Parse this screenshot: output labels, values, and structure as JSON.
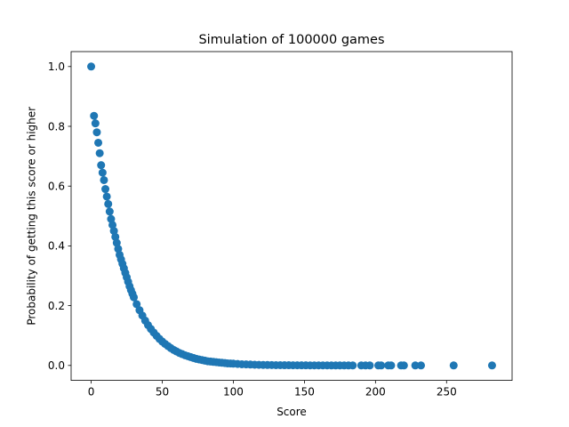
{
  "chart_data": {
    "type": "scatter",
    "title": "Simulation of 100000 games",
    "xlabel": "Score",
    "ylabel": "Probability of getting this score or higher",
    "xlim": [
      -14.1,
      296.1
    ],
    "ylim": [
      -0.05,
      1.05
    ],
    "x_ticks": [
      0,
      50,
      100,
      150,
      200,
      250
    ],
    "y_ticks": [
      0.0,
      0.2,
      0.4,
      0.6,
      0.8,
      1.0
    ],
    "x_tick_labels": [
      "0",
      "50",
      "100",
      "150",
      "200",
      "250"
    ],
    "y_tick_labels": [
      "0.0",
      "0.2",
      "0.4",
      "0.6",
      "0.8",
      "1.0"
    ],
    "grid": false,
    "marker_color": "#1f77b4",
    "series": [
      {
        "x": [
          0,
          2,
          3,
          4,
          5,
          6,
          7,
          8,
          9,
          10,
          11,
          12,
          13,
          14,
          15,
          16,
          17,
          18,
          19,
          20,
          21,
          22,
          23,
          24,
          25,
          26,
          27,
          28,
          29,
          30,
          32,
          34,
          36,
          38,
          40,
          42,
          44,
          46,
          48,
          50,
          52,
          54,
          56,
          58,
          60,
          62,
          64,
          66,
          68,
          70,
          72,
          74,
          76,
          78,
          80,
          82,
          84,
          86,
          88,
          90,
          92,
          94,
          96,
          98,
          100,
          103,
          106,
          109,
          112,
          115,
          118,
          121,
          124,
          127,
          130,
          133,
          136,
          139,
          142,
          145,
          148,
          151,
          154,
          157,
          160,
          163,
          166,
          169,
          172,
          175,
          178,
          181,
          184,
          190,
          193,
          196,
          202,
          204,
          209,
          211,
          218,
          220,
          228,
          232,
          255,
          282
        ],
        "y": [
          1.0,
          0.835,
          0.81,
          0.78,
          0.745,
          0.71,
          0.67,
          0.645,
          0.62,
          0.59,
          0.565,
          0.54,
          0.515,
          0.49,
          0.47,
          0.45,
          0.43,
          0.41,
          0.39,
          0.37,
          0.355,
          0.34,
          0.325,
          0.31,
          0.295,
          0.28,
          0.265,
          0.252,
          0.24,
          0.228,
          0.205,
          0.185,
          0.167,
          0.15,
          0.135,
          0.122,
          0.11,
          0.099,
          0.089,
          0.08,
          0.072,
          0.065,
          0.058,
          0.052,
          0.047,
          0.042,
          0.038,
          0.034,
          0.031,
          0.028,
          0.025,
          0.022,
          0.02,
          0.018,
          0.016,
          0.014,
          0.013,
          0.012,
          0.011,
          0.01,
          0.009,
          0.008,
          0.007,
          0.0065,
          0.006,
          0.005,
          0.004,
          0.0035,
          0.003,
          0.0025,
          0.002,
          0.0018,
          0.0015,
          0.0013,
          0.001,
          0.0009,
          0.0008,
          0.0007,
          0.0006,
          0.0005,
          0.0004,
          0.0004,
          0.0003,
          0.0003,
          0.0002,
          0.0002,
          0.0002,
          0.0001,
          0.0001,
          0.0001,
          0.0001,
          0.0001,
          0.0001,
          0.0001,
          0.0001,
          0.0001,
          0.0001,
          0.0001,
          0.0001,
          0.0001,
          0.0001,
          0.0001,
          0.0001,
          0.0001,
          0.0001,
          0.0001
        ]
      }
    ]
  }
}
